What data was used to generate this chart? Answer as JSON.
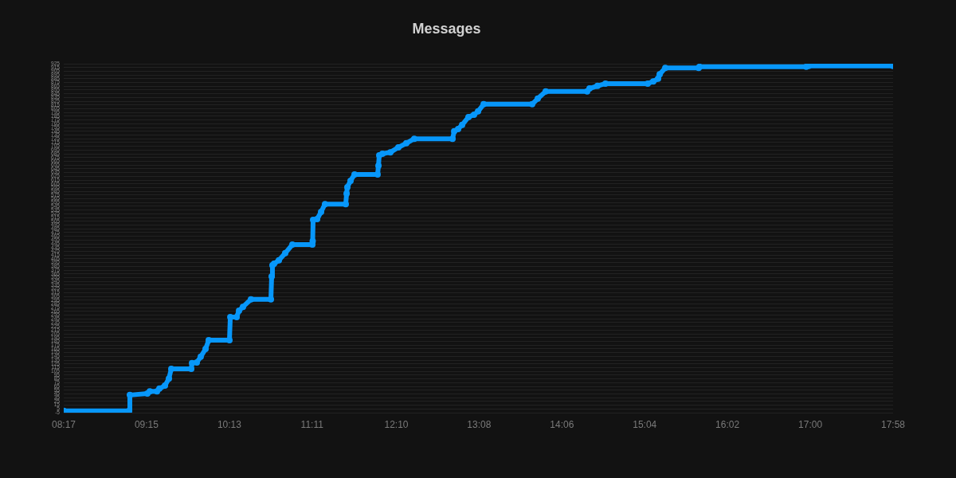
{
  "chart_data": {
    "type": "line",
    "title": "Messages",
    "color": "#0797fa",
    "marker": "circle",
    "grid": "y",
    "x": [
      8.283,
      9.046,
      9.055,
      9.26,
      9.288,
      9.372,
      9.4,
      9.465,
      9.511,
      9.539,
      9.772,
      9.781,
      9.837,
      9.883,
      9.939,
      9.976,
      10.218,
      10.228,
      10.302,
      10.33,
      10.376,
      10.469,
      10.702,
      10.711,
      10.72,
      10.739,
      10.795,
      10.869,
      10.953,
      11.186,
      11.19,
      11.195,
      11.242,
      11.288,
      11.334,
      11.576,
      11.586,
      11.595,
      11.632,
      11.679,
      11.948,
      11.958,
      11.967,
      12.004,
      12.097,
      12.19,
      12.283,
      12.376,
      12.823,
      12.842,
      12.888,
      12.935,
      13.009,
      13.074,
      13.121,
      13.186,
      13.753,
      13.818,
      13.911,
      14.395,
      14.423,
      14.516,
      14.609,
      15.102,
      15.167,
      15.223,
      15.242,
      15.307,
      15.697,
      15.707,
      16.953,
      16.981,
      17.967
    ],
    "values": [
      0,
      0,
      42,
      46,
      52,
      52,
      59,
      67,
      86,
      112,
      112,
      127,
      129,
      144,
      165,
      188,
      188,
      250,
      250,
      267,
      277,
      297,
      297,
      358,
      388,
      392,
      401,
      420,
      443,
      443,
      452,
      509,
      511,
      530,
      551,
      551,
      579,
      596,
      613,
      630,
      630,
      653,
      681,
      685,
      689,
      702,
      713,
      725,
      725,
      745,
      751,
      762,
      783,
      789,
      798,
      817,
      817,
      832,
      851,
      851,
      859,
      866,
      872,
      872,
      878,
      885,
      897,
      914,
      914,
      917,
      917,
      919,
      919
    ],
    "xlim": [
      8.283,
      17.967
    ],
    "xticks": [
      {
        "value": 8.283,
        "label": "08:17"
      },
      {
        "value": 9.25,
        "label": "09:15"
      },
      {
        "value": 10.217,
        "label": "10:13"
      },
      {
        "value": 11.183,
        "label": "11:11"
      },
      {
        "value": 12.167,
        "label": "12:10"
      },
      {
        "value": 13.133,
        "label": "13:08"
      },
      {
        "value": 14.1,
        "label": "14:06"
      },
      {
        "value": 15.067,
        "label": "15:04"
      },
      {
        "value": 16.033,
        "label": "16:02"
      },
      {
        "value": 17,
        "label": "17:00"
      },
      {
        "value": 17.967,
        "label": "17:58"
      }
    ],
    "ylim": [
      -5,
      925
    ],
    "yticks": [
      -5,
      5,
      15,
      25,
      35,
      45,
      55,
      65,
      75,
      85,
      95,
      105,
      115,
      125,
      135,
      145,
      155,
      165,
      175,
      185,
      195,
      205,
      215,
      225,
      235,
      245,
      255,
      265,
      275,
      285,
      295,
      305,
      315,
      325,
      335,
      345,
      355,
      365,
      375,
      385,
      395,
      405,
      415,
      425,
      435,
      445,
      455,
      465,
      475,
      485,
      495,
      505,
      515,
      525,
      535,
      545,
      555,
      565,
      575,
      585,
      595,
      605,
      615,
      625,
      635,
      645,
      655,
      665,
      675,
      685,
      695,
      705,
      715,
      725,
      735,
      745,
      755,
      765,
      775,
      785,
      795,
      805,
      815,
      825,
      835,
      845,
      855,
      865,
      875,
      885,
      895,
      905,
      915,
      925
    ]
  }
}
